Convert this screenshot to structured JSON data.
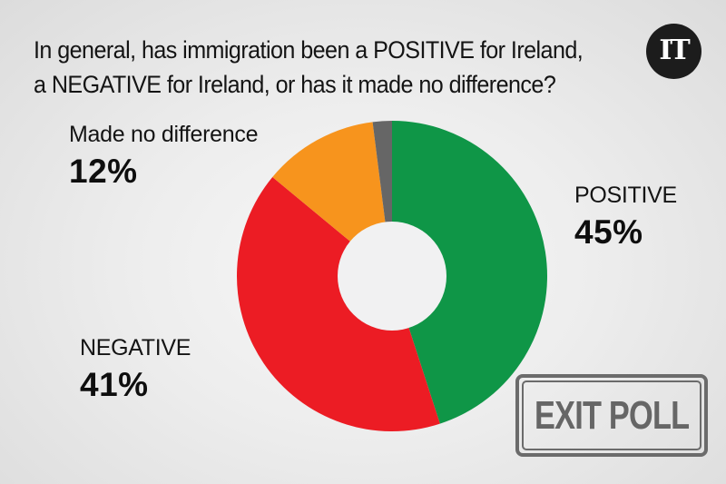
{
  "header": {
    "question_line1": "In general, has immigration been a POSITIVE for Ireland,",
    "question_line2": "a NEGATIVE for Ireland, or has it made no difference?",
    "logo_text": "IT"
  },
  "labels": {
    "positive": {
      "name": "POSITIVE",
      "pct": "45%"
    },
    "negative": {
      "name": "NEGATIVE",
      "pct": "41%"
    },
    "no_difference": {
      "name": "Made no difference",
      "pct": "12%"
    }
  },
  "stamp": {
    "text": "EXIT POLL"
  },
  "colors": {
    "positive": "#0f9647",
    "negative": "#ec1c24",
    "no_difference": "#f7941d",
    "other": "#666666",
    "center": "#f1f1f2"
  },
  "chart_data": {
    "type": "pie",
    "variant": "donut",
    "title": "In general, has immigration been a POSITIVE for Ireland, a NEGATIVE for Ireland, or has it made no difference?",
    "categories": [
      "POSITIVE",
      "NEGATIVE",
      "Made no difference",
      "Don't know / other (unlabeled)"
    ],
    "values": [
      45,
      41,
      12,
      2
    ],
    "units": "%",
    "start_angle_deg": 0,
    "direction": "clockwise",
    "legend": "direct labels beside segments"
  }
}
